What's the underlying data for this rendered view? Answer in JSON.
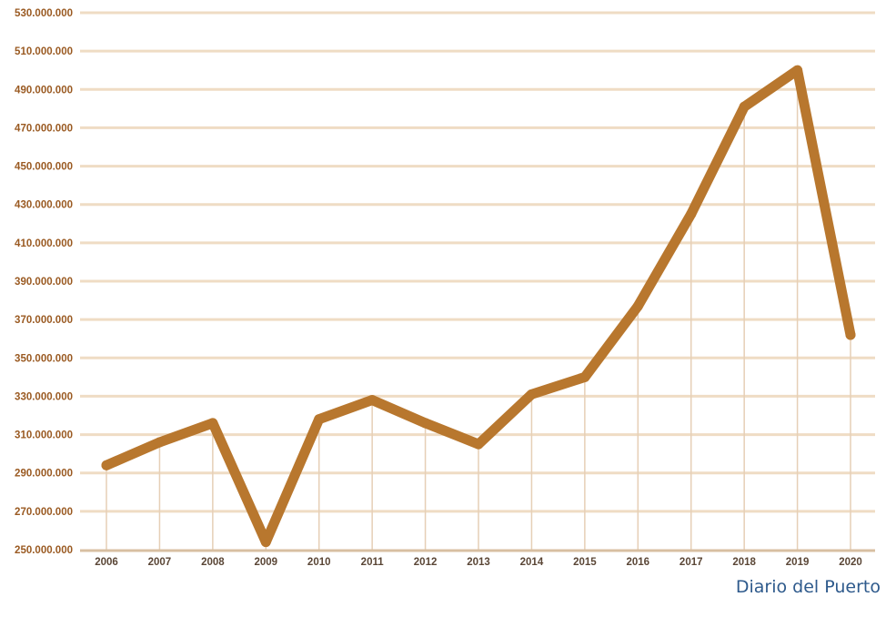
{
  "source": "Diario del Puerto",
  "colors": {
    "line": "#b8772e",
    "grid": "#efdcc4",
    "drop_lines": "#e6cfb6",
    "axis": "#d8bfa2",
    "ytick_text": "#9a5a22",
    "xtick_text": "#5a4636",
    "source_text": "#2e5a8c"
  },
  "chart_data": {
    "type": "line",
    "categories": [
      "2006",
      "2007",
      "2008",
      "2009",
      "2010",
      "2011",
      "2012",
      "2013",
      "2014",
      "2015",
      "2016",
      "2017",
      "2018",
      "2019",
      "2020"
    ],
    "values": [
      294000000,
      306000000,
      316000000,
      254000000,
      318000000,
      328000000,
      316000000,
      305000000,
      331000000,
      340000000,
      377000000,
      425000000,
      481000000,
      500000000,
      362000000
    ],
    "ylim": [
      250000000,
      530000000
    ],
    "yticks": [
      "250.000.000",
      "270.000.000",
      "290.000.000",
      "310.000.000",
      "330.000.000",
      "350.000.000",
      "370.000.000",
      "390.000.000",
      "410.000.000",
      "430.000.000",
      "450.000.000",
      "470.000.000",
      "490.000.000",
      "510.000.000",
      "530.000.000"
    ],
    "grid": true,
    "title": "",
    "xlabel": "",
    "ylabel": ""
  }
}
